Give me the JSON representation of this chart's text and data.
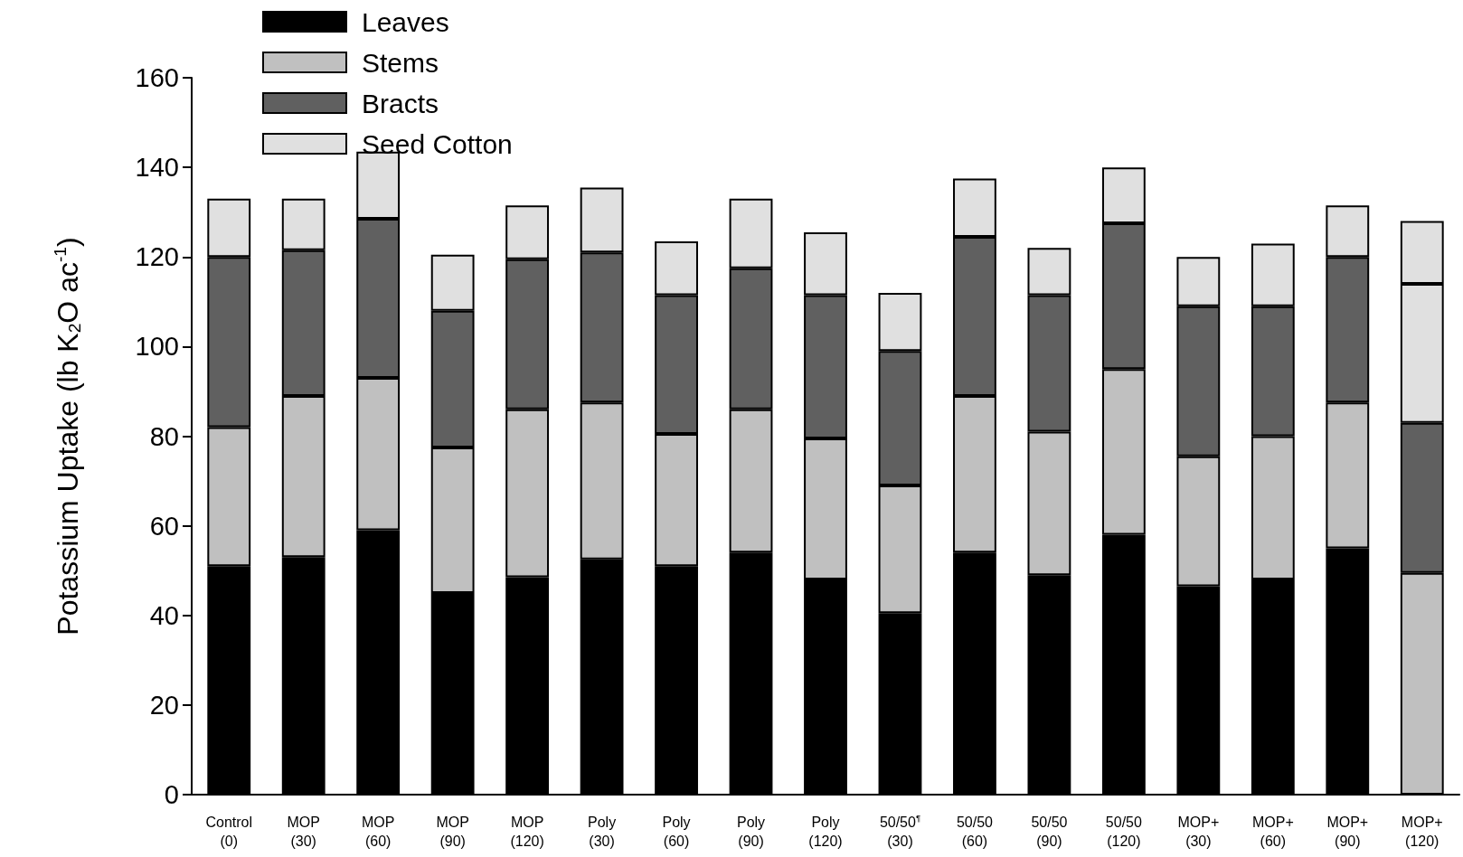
{
  "chart_data": {
    "type": "bar",
    "stacked": true,
    "ylabel": "Potassium Uptake (lb K$_{2}$O ac$^{-1}$)",
    "categories": [
      "Control\n(0)",
      "MOP\n(30)",
      "MOP\n(60)",
      "MOP\n(90)",
      "MOP\n(120)",
      "Poly\n(30)",
      "Poly\n(60)",
      "Poly\n(90)",
      "Poly\n(120)",
      "50/50$^{¶}$\n(30)",
      "50/50\n(60)",
      "50/50\n(90)",
      "50/50\n(120)",
      "MOP+\n(30)",
      "MOP+\n(60)",
      "MOP+\n(90)",
      "MOP+\n(120)"
    ],
    "series": [
      {
        "name": "Leaves",
        "color": "#000000",
        "colors": [
          "#000000",
          "#000000",
          "#000000",
          "#000000",
          "#000000",
          "#000000",
          "#000000",
          "#000000",
          "#000000",
          "#000000",
          "#000000",
          "#000000",
          "#000000",
          "#000000",
          "#000000",
          "#000000",
          "#c0c0c0"
        ],
        "values": [
          51,
          53,
          59,
          45,
          48.5,
          52.5,
          51,
          54,
          48,
          40.5,
          54,
          49,
          58,
          46.5,
          48,
          55,
          49.5
        ]
      },
      {
        "name": "Stems",
        "color": "#c0c0c0",
        "colors": [
          "#c0c0c0",
          "#c0c0c0",
          "#c0c0c0",
          "#c0c0c0",
          "#c0c0c0",
          "#c0c0c0",
          "#c0c0c0",
          "#c0c0c0",
          "#c0c0c0",
          "#c0c0c0",
          "#c0c0c0",
          "#c0c0c0",
          "#c0c0c0",
          "#c0c0c0",
          "#c0c0c0",
          "#c0c0c0",
          "#606060"
        ],
        "values": [
          31,
          36,
          34,
          32.5,
          37.5,
          35,
          29.5,
          32,
          31.5,
          28.5,
          35,
          32,
          37,
          29,
          32,
          32.5,
          33.5
        ]
      },
      {
        "name": "Bracts",
        "color": "#606060",
        "colors": [
          "#606060",
          "#606060",
          "#606060",
          "#606060",
          "#606060",
          "#606060",
          "#606060",
          "#606060",
          "#606060",
          "#606060",
          "#606060",
          "#606060",
          "#606060",
          "#606060",
          "#606060",
          "#606060",
          "#e0e0e0"
        ],
        "values": [
          38,
          32.5,
          35.5,
          30.5,
          33.5,
          33.5,
          31,
          31.5,
          32,
          30,
          35.5,
          30.5,
          32.5,
          33.5,
          29,
          32.5,
          31
        ]
      },
      {
        "name": "Seed Cotton",
        "color": "#e0e0e0",
        "values": [
          13,
          11.5,
          15,
          12.5,
          12,
          14.5,
          12,
          15.5,
          14,
          13,
          13,
          10.5,
          12.5,
          11,
          14,
          11.5,
          14
        ]
      }
    ],
    "ylim": [
      0,
      160
    ],
    "yticks": [
      0,
      20,
      40,
      60,
      80,
      100,
      120,
      140,
      160
    ],
    "grid": false,
    "legend": "top left"
  }
}
